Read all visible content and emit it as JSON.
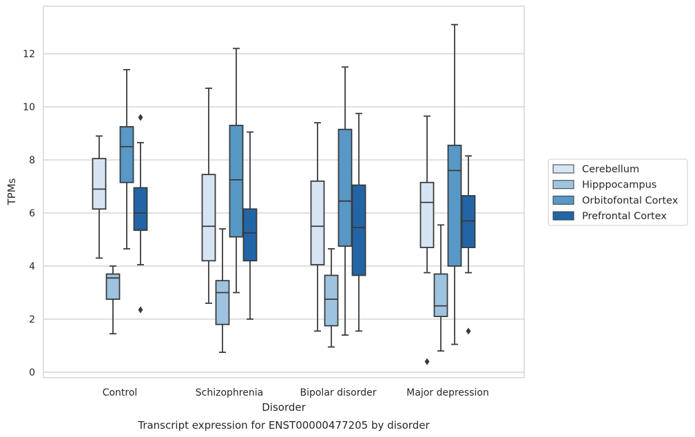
{
  "chart_data": {
    "type": "box",
    "caption": "Transcript expression for ENST00000477205 by disorder",
    "xlabel": "Disorder",
    "ylabel": "TPMs",
    "ylim": [
      -0.2,
      13.8
    ],
    "yticks": [
      0,
      2,
      4,
      6,
      8,
      10,
      12
    ],
    "grid": true,
    "legend_position": "right",
    "categories": [
      "Control",
      "Schizophrenia",
      "Bipolar disorder",
      "Major depression"
    ],
    "series": [
      {
        "name": "Cerebellum",
        "color": "#d6e4f3",
        "boxes": [
          {
            "whislo": 4.3,
            "q1": 6.15,
            "med": 6.9,
            "q3": 8.05,
            "whishi": 8.9,
            "fliers": []
          },
          {
            "whislo": 2.6,
            "q1": 4.2,
            "med": 5.5,
            "q3": 7.45,
            "whishi": 10.7,
            "fliers": []
          },
          {
            "whislo": 1.55,
            "q1": 4.05,
            "med": 5.5,
            "q3": 7.2,
            "whishi": 9.4,
            "fliers": []
          },
          {
            "whislo": 3.75,
            "q1": 4.7,
            "med": 6.4,
            "q3": 7.15,
            "whishi": 9.65,
            "fliers": [
              0.4
            ]
          }
        ]
      },
      {
        "name": "Hipppocampus",
        "color": "#9dc3df",
        "boxes": [
          {
            "whislo": 1.45,
            "q1": 2.75,
            "med": 3.55,
            "q3": 3.7,
            "whishi": 4.0,
            "fliers": []
          },
          {
            "whislo": 0.75,
            "q1": 1.8,
            "med": 3.0,
            "q3": 3.45,
            "whishi": 5.4,
            "fliers": []
          },
          {
            "whislo": 0.95,
            "q1": 1.75,
            "med": 2.75,
            "q3": 3.65,
            "whishi": 4.65,
            "fliers": []
          },
          {
            "whislo": 0.8,
            "q1": 2.1,
            "med": 2.5,
            "q3": 3.7,
            "whishi": 5.55,
            "fliers": []
          }
        ]
      },
      {
        "name": "Orbitofontal Cortex",
        "color": "#5898c6",
        "boxes": [
          {
            "whislo": 4.65,
            "q1": 7.15,
            "med": 8.5,
            "q3": 9.25,
            "whishi": 11.4,
            "fliers": []
          },
          {
            "whislo": 3.0,
            "q1": 5.1,
            "med": 7.25,
            "q3": 9.3,
            "whishi": 12.2,
            "fliers": []
          },
          {
            "whislo": 1.4,
            "q1": 4.75,
            "med": 6.45,
            "q3": 9.15,
            "whishi": 11.5,
            "fliers": []
          },
          {
            "whislo": 1.05,
            "q1": 4.0,
            "med": 7.6,
            "q3": 8.55,
            "whishi": 13.1,
            "fliers": []
          }
        ]
      },
      {
        "name": "Prefrontal Cortex",
        "color": "#2265a7",
        "boxes": [
          {
            "whislo": 4.05,
            "q1": 5.35,
            "med": 6.0,
            "q3": 6.95,
            "whishi": 8.65,
            "fliers": [
              9.6,
              2.35
            ]
          },
          {
            "whislo": 2.0,
            "q1": 4.2,
            "med": 5.25,
            "q3": 6.15,
            "whishi": 9.05,
            "fliers": []
          },
          {
            "whislo": 1.55,
            "q1": 3.65,
            "med": 5.45,
            "q3": 7.05,
            "whishi": 9.75,
            "fliers": []
          },
          {
            "whislo": 3.75,
            "q1": 4.7,
            "med": 5.7,
            "q3": 6.65,
            "whishi": 8.15,
            "fliers": [
              1.55
            ]
          }
        ]
      }
    ]
  }
}
